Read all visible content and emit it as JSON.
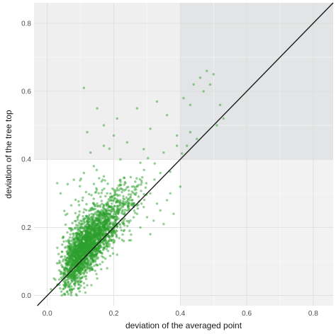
{
  "chart_data": {
    "type": "scatter",
    "title": "",
    "xlabel": "deviation of the averaged point",
    "ylabel": "deviation of the tree top",
    "xlim": [
      -0.04,
      0.86
    ],
    "ylim": [
      -0.03,
      0.86
    ],
    "xticks": [
      0.0,
      0.2,
      0.4,
      0.6,
      0.8
    ],
    "yticks": [
      0.0,
      0.2,
      0.4,
      0.6,
      0.8
    ],
    "xtick_labels": [
      "0.0",
      "0.2",
      "0.4",
      "0.6",
      "0.8"
    ],
    "ytick_labels": [
      "0.0",
      "0.2",
      "0.4",
      "0.6",
      "0.8"
    ],
    "grid": true,
    "legend": "none",
    "reference_line": {
      "type": "identity",
      "slope": 1,
      "intercept": 0,
      "color": "#1a1a1a"
    },
    "shaded_regions": [
      {
        "name": "tree-top-deviation-over-0.4",
        "x": [
          -0.04,
          0.4
        ],
        "y": [
          0.4,
          0.86
        ],
        "color": "#efefef"
      },
      {
        "name": "both-deviations-over-0.4",
        "x": [
          0.4,
          0.86
        ],
        "y": [
          0.4,
          0.86
        ],
        "color": "#e2e4e5"
      },
      {
        "name": "averaged-deviation-over-0.4",
        "x": [
          0.4,
          0.86
        ],
        "y": [
          -0.03,
          0.4
        ],
        "color": "#f2f2f2"
      }
    ],
    "point_color": "#2ca02c",
    "approx_point_count": 2500,
    "visible_points": [
      [
        0.11,
        0.61
      ],
      [
        0.17,
        0.5
      ],
      [
        0.15,
        0.55
      ],
      [
        0.21,
        0.52
      ],
      [
        0.12,
        0.48
      ],
      [
        0.27,
        0.55
      ],
      [
        0.33,
        0.57
      ],
      [
        0.36,
        0.53
      ],
      [
        0.41,
        0.58
      ],
      [
        0.43,
        0.56
      ],
      [
        0.44,
        0.62
      ],
      [
        0.46,
        0.64
      ],
      [
        0.48,
        0.66
      ],
      [
        0.47,
        0.6
      ],
      [
        0.5,
        0.65
      ],
      [
        0.49,
        0.62
      ],
      [
        0.52,
        0.56
      ],
      [
        0.53,
        0.52
      ],
      [
        0.51,
        0.5
      ],
      [
        0.43,
        0.48
      ],
      [
        0.39,
        0.47
      ],
      [
        0.31,
        0.49
      ],
      [
        0.29,
        0.43
      ],
      [
        0.24,
        0.45
      ],
      [
        0.2,
        0.47
      ],
      [
        0.17,
        0.44
      ],
      [
        0.13,
        0.42
      ],
      [
        0.22,
        0.4
      ],
      [
        0.28,
        0.39
      ],
      [
        0.35,
        0.42
      ],
      [
        0.39,
        0.44
      ],
      [
        0.42,
        0.44
      ],
      [
        0.45,
        0.46
      ],
      [
        0.34,
        0.36
      ],
      [
        0.06,
        0.24
      ],
      [
        0.04,
        0.3
      ],
      [
        0.03,
        0.33
      ],
      [
        0.08,
        0.34
      ],
      [
        0.11,
        0.36
      ],
      [
        0.14,
        0.38
      ],
      [
        0.17,
        0.35
      ],
      [
        0.22,
        0.34
      ],
      [
        0.26,
        0.32
      ],
      [
        0.31,
        0.3
      ],
      [
        0.33,
        0.27
      ],
      [
        0.36,
        0.28
      ],
      [
        0.38,
        0.24
      ],
      [
        0.35,
        0.21
      ],
      [
        0.31,
        0.18
      ],
      [
        0.28,
        0.2
      ],
      [
        0.25,
        0.22
      ],
      [
        0.23,
        0.16
      ],
      [
        0.21,
        0.12
      ],
      [
        0.18,
        0.08
      ],
      [
        0.15,
        0.05
      ],
      [
        0.12,
        0.03
      ],
      [
        0.1,
        0.04
      ],
      [
        0.08,
        0.02
      ],
      [
        0.06,
        0.01
      ],
      [
        0.05,
        0.02
      ],
      [
        0.03,
        0.03
      ],
      [
        0.02,
        0.05
      ],
      [
        0.04,
        0.07
      ],
      [
        0.06,
        0.11
      ],
      [
        0.07,
        0.14
      ],
      [
        0.09,
        0.17
      ],
      [
        0.1,
        0.2
      ],
      [
        0.12,
        0.22
      ],
      [
        0.13,
        0.25
      ],
      [
        0.15,
        0.27
      ],
      [
        0.16,
        0.29
      ],
      [
        0.18,
        0.3
      ],
      [
        0.2,
        0.28
      ],
      [
        0.19,
        0.24
      ],
      [
        0.17,
        0.21
      ],
      [
        0.16,
        0.18
      ],
      [
        0.14,
        0.15
      ],
      [
        0.13,
        0.12
      ],
      [
        0.11,
        0.1
      ],
      [
        0.09,
        0.08
      ],
      [
        0.07,
        0.06
      ],
      [
        0.05,
        0.05
      ],
      [
        0.08,
        0.12
      ],
      [
        0.1,
        0.14
      ],
      [
        0.12,
        0.17
      ],
      [
        0.14,
        0.19
      ],
      [
        0.15,
        0.22
      ],
      [
        0.17,
        0.24
      ],
      [
        0.19,
        0.26
      ],
      [
        0.21,
        0.23
      ],
      [
        0.22,
        0.2
      ],
      [
        0.24,
        0.25
      ],
      [
        0.26,
        0.27
      ],
      [
        0.27,
        0.24
      ],
      [
        0.29,
        0.26
      ],
      [
        0.3,
        0.23
      ],
      [
        0.32,
        0.22
      ],
      [
        0.34,
        0.25
      ],
      [
        0.37,
        0.3
      ],
      [
        0.4,
        0.32
      ]
    ]
  }
}
